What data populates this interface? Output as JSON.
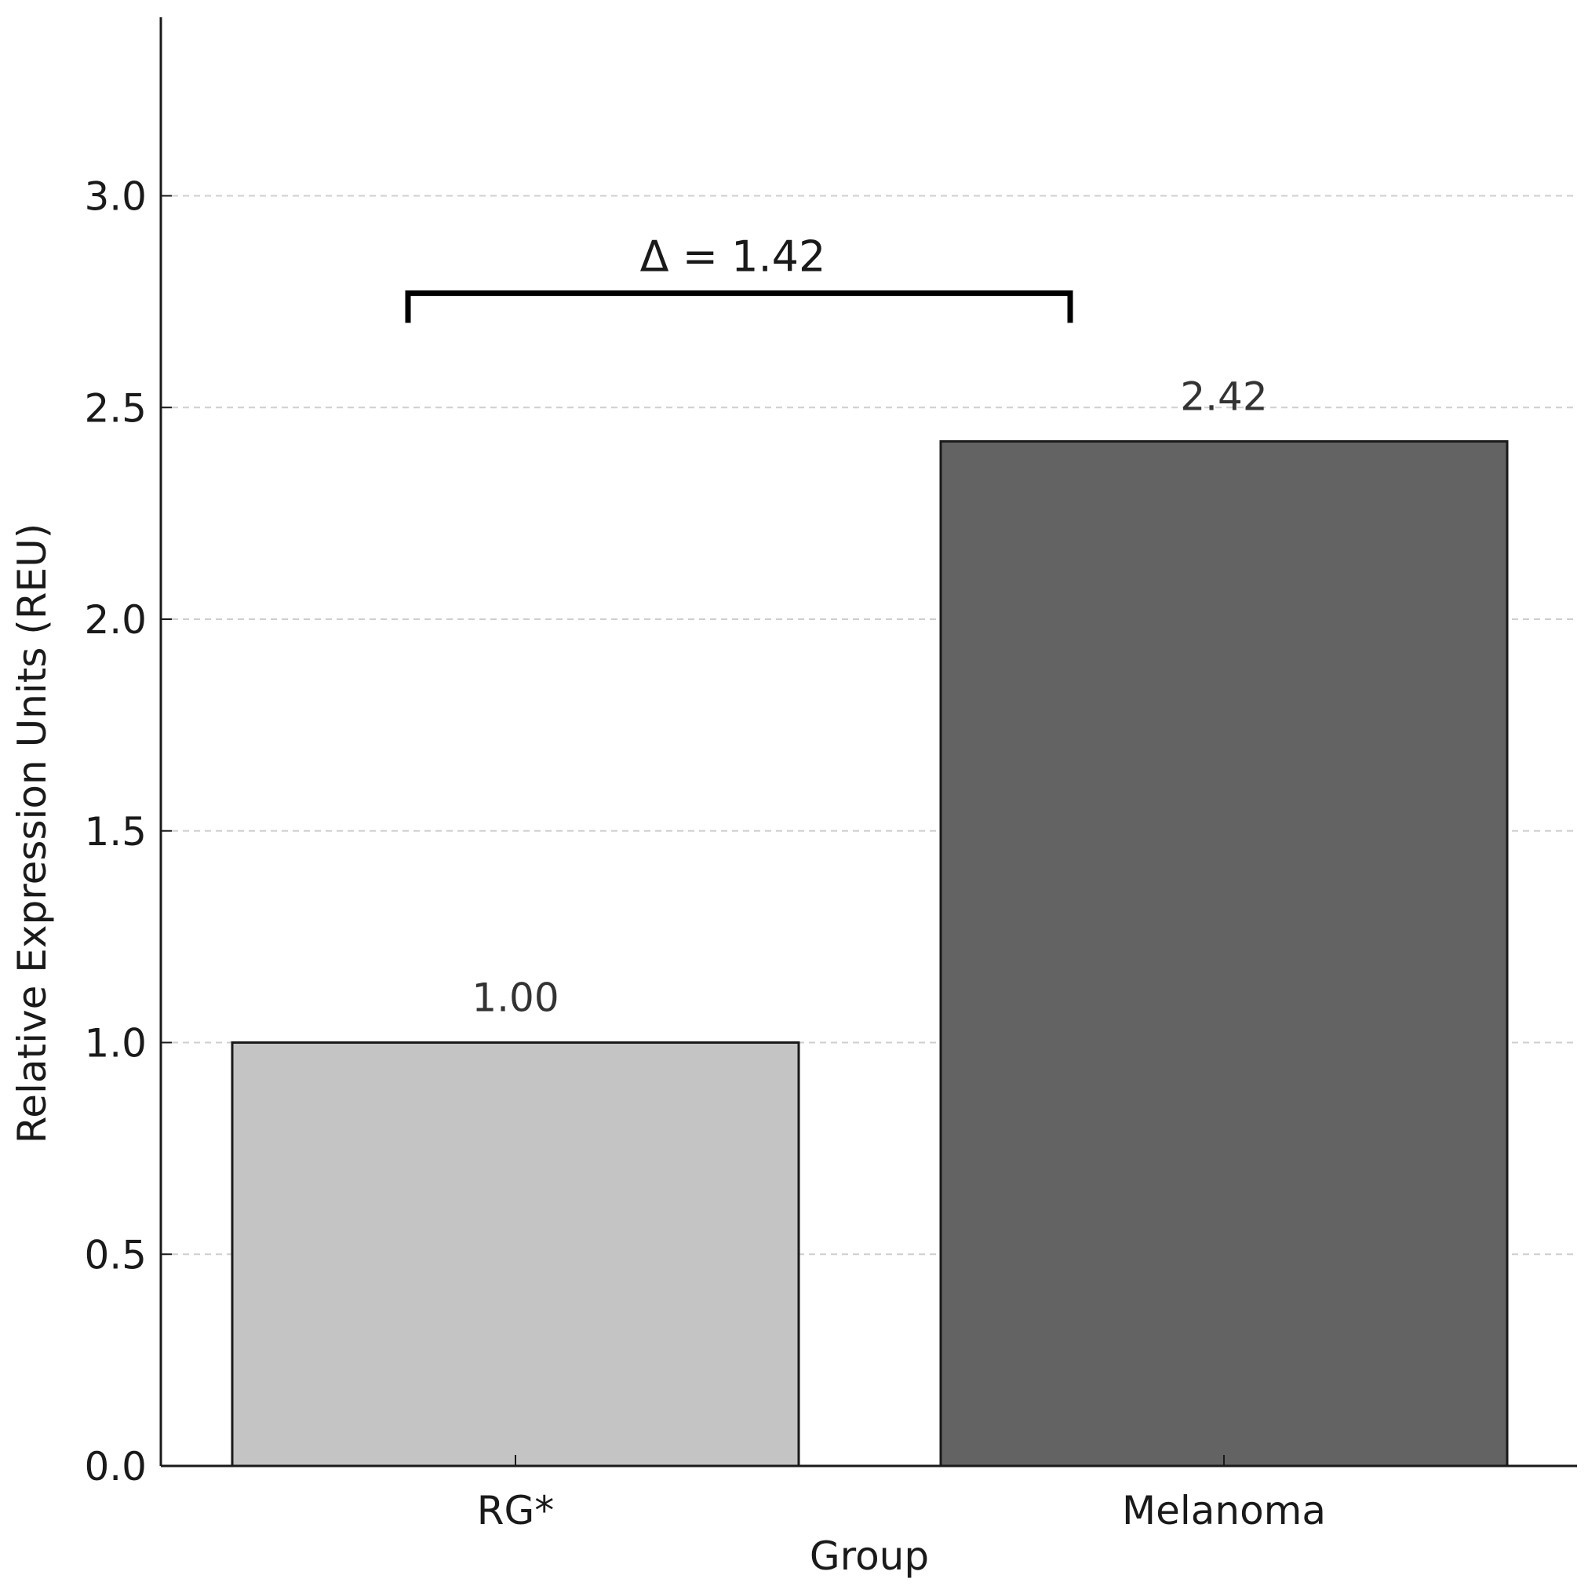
{
  "chart_data": {
    "type": "bar",
    "categories": [
      "RG*",
      "Melanoma"
    ],
    "values": [
      1.0,
      2.42
    ],
    "value_labels": [
      "1.00",
      "2.42"
    ],
    "bar_colors": [
      "#c4c4c4",
      "#636363"
    ],
    "edge_color": "#1a1a1a",
    "xlabel": "Group",
    "ylabel": "Relative Expression Units (REU)",
    "ylim": [
      0,
      3.45
    ],
    "yticks": [
      0.0,
      0.5,
      1.0,
      1.5,
      2.0,
      2.5,
      3.0
    ],
    "ytick_labels": [
      "0.0",
      "0.5",
      "1.0",
      "1.5",
      "2.0",
      "2.5",
      "3.0"
    ],
    "grid": "y-dashed",
    "annotation": {
      "text": "Δ = 1.42",
      "bracket_from": "RG*",
      "bracket_to": "Melanoma",
      "bracket_level": 2.77,
      "bracket_drop": 0.07,
      "text_level": 3.0
    }
  }
}
